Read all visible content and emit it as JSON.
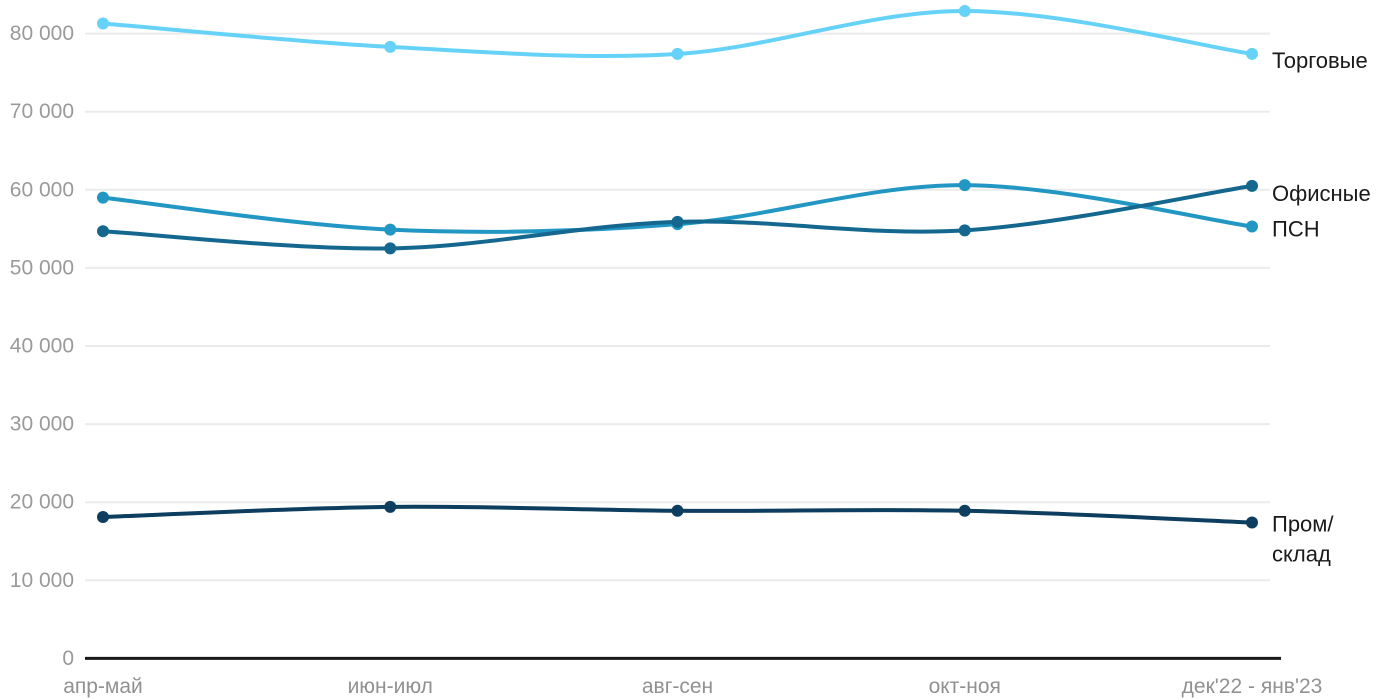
{
  "chart_data": {
    "type": "line",
    "title": "",
    "xlabel": "",
    "ylabel": "",
    "categories": [
      "апр-май",
      "июн-июл",
      "авг-сен",
      "окт-ноя",
      "дек'22 - янв'23"
    ],
    "series": [
      {
        "name": "Торговые",
        "color": "#66D2F7",
        "values": [
          81300,
          78300,
          77400,
          82900,
          77400
        ]
      },
      {
        "name": "ПСН",
        "color": "#2397C3",
        "values": [
          59000,
          54900,
          55600,
          60600,
          55300
        ]
      },
      {
        "name": "Офисные",
        "color": "#14688F",
        "values": [
          54700,
          52500,
          55900,
          54800,
          60500
        ]
      },
      {
        "name": "Пром/склад",
        "color": "#0D3E60",
        "values": [
          18100,
          19400,
          18900,
          18900,
          17400
        ],
        "label_lines": [
          "Пром/",
          "склад"
        ]
      }
    ],
    "yticks": [
      {
        "value": 0,
        "label": "0"
      },
      {
        "value": 10000,
        "label": "10 000"
      },
      {
        "value": 20000,
        "label": "20 000"
      },
      {
        "value": 30000,
        "label": "30 000"
      },
      {
        "value": 40000,
        "label": "40 000"
      },
      {
        "value": 50000,
        "label": "50 000"
      },
      {
        "value": 60000,
        "label": "60 000"
      },
      {
        "value": 70000,
        "label": "70 000"
      },
      {
        "value": 80000,
        "label": "80 000"
      }
    ],
    "ylim": [
      0,
      84000
    ],
    "grid": true,
    "legend_position": "right-of-line-end",
    "colors": {
      "gridline": "#EBEBEB",
      "axis_line": "#1A1A1A",
      "tick_label": "#9A9A9A",
      "x_label": "#919191",
      "end_label": "#1A1A1A",
      "background": "#FFFFFF"
    }
  }
}
